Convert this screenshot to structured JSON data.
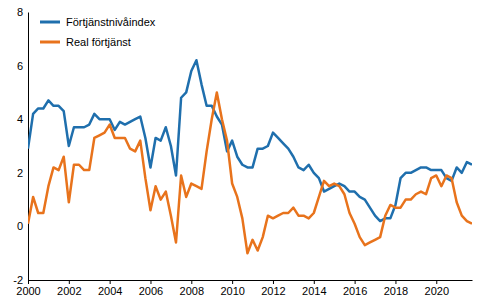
{
  "chart_data": {
    "type": "line",
    "x": [
      2000,
      2000.25,
      2000.5,
      2000.75,
      2001,
      2001.25,
      2001.5,
      2001.75,
      2002,
      2002.25,
      2002.5,
      2002.75,
      2003,
      2003.25,
      2003.5,
      2003.75,
      2004,
      2004.25,
      2004.5,
      2004.75,
      2005,
      2005.25,
      2005.5,
      2005.75,
      2006,
      2006.25,
      2006.5,
      2006.75,
      2007,
      2007.25,
      2007.5,
      2007.75,
      2008,
      2008.25,
      2008.5,
      2008.75,
      2009,
      2009.25,
      2009.5,
      2009.75,
      2010,
      2010.25,
      2010.5,
      2010.75,
      2011,
      2011.25,
      2011.5,
      2011.75,
      2012,
      2012.25,
      2012.5,
      2012.75,
      2013,
      2013.25,
      2013.5,
      2013.75,
      2014,
      2014.25,
      2014.5,
      2014.75,
      2015,
      2015.25,
      2015.5,
      2015.75,
      2016,
      2016.25,
      2016.5,
      2016.75,
      2017,
      2017.25,
      2017.5,
      2017.75,
      2018,
      2018.25,
      2018.5,
      2018.75,
      2019,
      2019.25,
      2019.5,
      2019.75,
      2020,
      2020.25,
      2020.5,
      2020.75,
      2021,
      2021.25,
      2021.5,
      2021.75
    ],
    "series": [
      {
        "name": "Förtjänstnivåindex",
        "color": "#1f6fad",
        "values": [
          2.9,
          4.2,
          4.4,
          4.4,
          4.7,
          4.5,
          4.5,
          4.3,
          3.0,
          3.7,
          3.7,
          3.7,
          3.8,
          4.2,
          4.0,
          4.0,
          4.0,
          3.6,
          3.9,
          3.8,
          3.9,
          4.0,
          4.1,
          3.3,
          2.2,
          3.3,
          3.2,
          3.7,
          3.0,
          1.9,
          4.8,
          5.0,
          5.8,
          6.2,
          5.3,
          4.5,
          4.5,
          4.1,
          3.8,
          2.8,
          3.2,
          2.6,
          2.3,
          2.2,
          2.2,
          2.9,
          2.9,
          3.0,
          3.5,
          3.3,
          3.1,
          2.9,
          2.6,
          2.2,
          2.1,
          2.3,
          2.0,
          1.8,
          1.3,
          1.4,
          1.5,
          1.6,
          1.5,
          1.3,
          1.3,
          1.1,
          1.0,
          0.7,
          0.4,
          0.2,
          0.3,
          0.3,
          0.8,
          1.8,
          2.0,
          2.0,
          2.1,
          2.2,
          2.2,
          2.1,
          2.1,
          2.1,
          1.8,
          1.7,
          2.2,
          2.0,
          2.4,
          2.3
        ]
      },
      {
        "name": "Real förtjänst",
        "color": "#e8731c",
        "values": [
          0.1,
          1.1,
          0.5,
          0.5,
          1.5,
          2.2,
          2.1,
          2.6,
          0.9,
          2.3,
          2.3,
          2.1,
          2.1,
          3.3,
          3.4,
          3.5,
          3.8,
          3.3,
          3.3,
          3.3,
          2.9,
          2.8,
          3.2,
          1.8,
          0.6,
          1.5,
          1.0,
          1.3,
          0.4,
          -0.6,
          1.9,
          1.1,
          1.6,
          1.5,
          1.4,
          2.8,
          4.0,
          5.0,
          4.0,
          3.2,
          1.6,
          1.1,
          0.3,
          -1.0,
          -0.5,
          -0.9,
          -0.4,
          0.4,
          0.3,
          0.4,
          0.5,
          0.5,
          0.7,
          0.4,
          0.4,
          0.3,
          0.5,
          1.1,
          1.7,
          1.5,
          1.6,
          1.5,
          1.2,
          0.5,
          0.1,
          -0.4,
          -0.7,
          -0.6,
          -0.5,
          -0.4,
          0.4,
          0.8,
          0.7,
          0.7,
          1.0,
          1.0,
          1.2,
          1.3,
          1.2,
          1.8,
          1.9,
          1.5,
          1.9,
          1.8,
          0.9,
          0.4,
          0.2,
          0.1
        ]
      }
    ],
    "xlim": [
      2000,
      2021.75
    ],
    "xticks": [
      2000,
      2002,
      2004,
      2006,
      2008,
      2010,
      2012,
      2014,
      2016,
      2018,
      2020
    ],
    "ylim": [
      -2,
      8
    ],
    "yticks": [
      -2,
      0,
      2,
      4,
      6,
      8
    ],
    "grid": false,
    "legend": "upper left"
  }
}
